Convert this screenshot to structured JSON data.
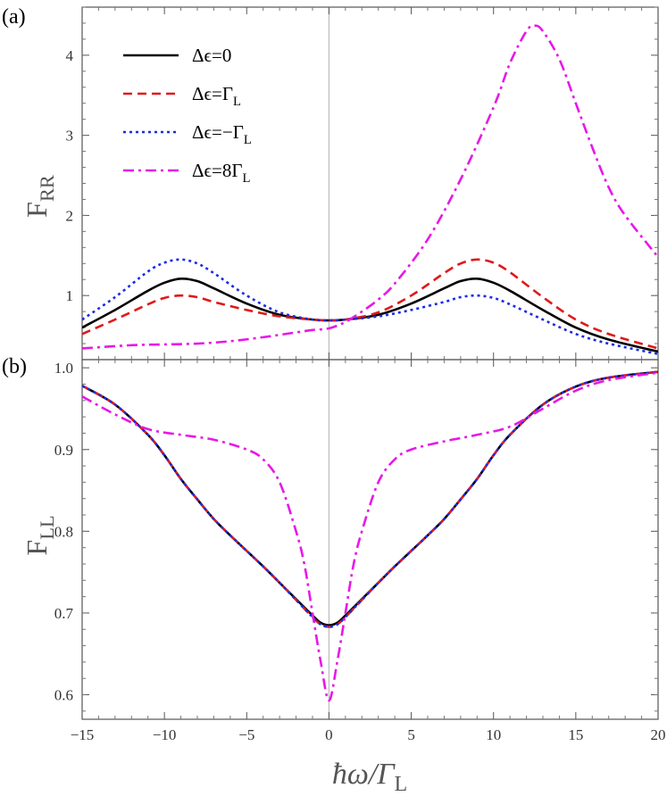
{
  "figure": {
    "x_label": "ħω/Γ",
    "x_label_sub": "L",
    "x_ticks": [
      "−15",
      "−10",
      "−5",
      "0",
      "5",
      "10",
      "15",
      "20"
    ]
  },
  "chart_data": [
    {
      "type": "line",
      "panel_tag": "(a)",
      "ylabel": "F",
      "ylabel_sub": "RR",
      "xlabel": "ħω/ΓL",
      "xlim": [
        -15,
        20
      ],
      "ylim": [
        0.2,
        4.6
      ],
      "y_ticks": [
        1,
        2,
        3,
        4
      ],
      "grid": false,
      "legend": "top-left",
      "series": [
        {
          "name": "Δϵ=0",
          "name_main": "Δϵ=0",
          "name_sub": "",
          "color": "#000000",
          "dash": "solid",
          "x": [
            -15,
            -13,
            -11,
            -10,
            -9,
            -8,
            -7,
            -5,
            -3,
            -1,
            0,
            1,
            3,
            5,
            7,
            8,
            9,
            10,
            11,
            13,
            15,
            17,
            20
          ],
          "y": [
            0.6,
            0.82,
            1.06,
            1.16,
            1.21,
            1.18,
            1.09,
            0.9,
            0.76,
            0.7,
            0.69,
            0.7,
            0.76,
            0.9,
            1.09,
            1.18,
            1.21,
            1.16,
            1.06,
            0.82,
            0.6,
            0.45,
            0.3
          ]
        },
        {
          "name": "Δϵ=ΓL",
          "name_main": "Δϵ=Γ",
          "name_sub": "L",
          "color": "#e0191b",
          "dash": "10,6",
          "x": [
            -15,
            -13,
            -11,
            -10,
            -9,
            -8,
            -7,
            -5,
            -3,
            -1,
            0,
            1,
            3,
            5,
            7,
            8,
            9,
            10,
            11,
            13,
            15,
            17,
            20
          ],
          "y": [
            0.52,
            0.7,
            0.89,
            0.97,
            1.0,
            0.98,
            0.92,
            0.82,
            0.74,
            0.7,
            0.69,
            0.7,
            0.79,
            1.0,
            1.28,
            1.4,
            1.45,
            1.41,
            1.29,
            0.98,
            0.7,
            0.52,
            0.34
          ]
        },
        {
          "name": "Δϵ=−ΓL",
          "name_main": "Δϵ=−Γ",
          "name_sub": "L",
          "color": "#1c2ce0",
          "dash": "3,4",
          "x": [
            -15,
            -13,
            -11,
            -10,
            -9,
            -8,
            -7,
            -5,
            -3,
            -1,
            0,
            1,
            3,
            5,
            7,
            8,
            9,
            10,
            11,
            13,
            15,
            17,
            20
          ],
          "y": [
            0.7,
            0.98,
            1.3,
            1.41,
            1.45,
            1.4,
            1.28,
            1.0,
            0.79,
            0.7,
            0.69,
            0.7,
            0.74,
            0.82,
            0.92,
            0.98,
            1.0,
            0.97,
            0.89,
            0.7,
            0.52,
            0.4,
            0.27
          ]
        },
        {
          "name": "Δϵ=8ΓL",
          "name_main": "Δϵ=8Γ",
          "name_sub": "L",
          "color": "#e619e6",
          "dash": "12,5,3,5",
          "x": [
            -15,
            -12,
            -10,
            -8,
            -6,
            -4,
            -2,
            -1,
            0,
            1,
            2,
            3,
            4,
            6,
            8,
            10,
            11,
            12,
            12.5,
            13,
            14,
            15,
            16,
            17,
            18,
            20
          ],
          "y": [
            0.34,
            0.38,
            0.39,
            0.4,
            0.43,
            0.48,
            0.54,
            0.57,
            0.59,
            0.67,
            0.8,
            0.95,
            1.15,
            1.7,
            2.45,
            3.35,
            3.9,
            4.3,
            4.37,
            4.3,
            3.95,
            3.4,
            2.85,
            2.35,
            2.0,
            1.48
          ]
        }
      ]
    },
    {
      "type": "line",
      "panel_tag": "(b)",
      "ylabel": "F",
      "ylabel_sub": "LL",
      "xlabel": "ħω/ΓL",
      "xlim": [
        -15,
        20
      ],
      "ylim": [
        0.57,
        1.01
      ],
      "y_ticks": [
        0.6,
        0.7,
        0.8,
        0.9,
        1.0
      ],
      "y_tick_labels": [
        "0.6",
        "0.7",
        "0.8",
        "0.9",
        "1.0"
      ],
      "grid": false,
      "series": [
        {
          "name": "Δϵ=0",
          "color": "#000000",
          "dash": "solid",
          "x": [
            -15,
            -13,
            -11,
            -10,
            -9,
            -8,
            -7,
            -6,
            -5,
            -4,
            -3,
            -2,
            -1,
            -0.5,
            0,
            0.5,
            1,
            2,
            3,
            4,
            5,
            6,
            7,
            8,
            9,
            10,
            11,
            13,
            15,
            17,
            20
          ],
          "y": [
            0.978,
            0.955,
            0.918,
            0.893,
            0.864,
            0.839,
            0.815,
            0.795,
            0.776,
            0.757,
            0.737,
            0.717,
            0.697,
            0.688,
            0.685,
            0.688,
            0.697,
            0.717,
            0.737,
            0.757,
            0.776,
            0.795,
            0.815,
            0.839,
            0.864,
            0.893,
            0.918,
            0.955,
            0.977,
            0.988,
            0.995
          ]
        },
        {
          "name": "Δϵ=ΓL",
          "color": "#e0191b",
          "dash": "10,6",
          "x": [
            -15,
            -13,
            -11,
            -10,
            -9,
            -8,
            -7,
            -6,
            -5,
            -4,
            -3,
            -2,
            -1,
            -0.5,
            0,
            0.5,
            1,
            2,
            3,
            4,
            5,
            6,
            7,
            8,
            9,
            10,
            11,
            13,
            15,
            17,
            20
          ],
          "y": [
            0.978,
            0.955,
            0.918,
            0.893,
            0.864,
            0.839,
            0.815,
            0.795,
            0.776,
            0.757,
            0.737,
            0.716,
            0.695,
            0.686,
            0.683,
            0.686,
            0.695,
            0.716,
            0.737,
            0.757,
            0.776,
            0.795,
            0.815,
            0.839,
            0.864,
            0.893,
            0.918,
            0.955,
            0.977,
            0.988,
            0.995
          ]
        },
        {
          "name": "Δϵ=−ΓL",
          "color": "#1c2ce0",
          "dash": "3,4",
          "x": [
            -15,
            -13,
            -11,
            -10,
            -9,
            -8,
            -7,
            -6,
            -5,
            -4,
            -3,
            -2,
            -1,
            -0.5,
            0,
            0.5,
            1,
            2,
            3,
            4,
            5,
            6,
            7,
            8,
            9,
            10,
            11,
            13,
            15,
            17,
            20
          ],
          "y": [
            0.978,
            0.955,
            0.918,
            0.893,
            0.864,
            0.839,
            0.815,
            0.795,
            0.776,
            0.757,
            0.737,
            0.716,
            0.695,
            0.686,
            0.683,
            0.686,
            0.695,
            0.716,
            0.737,
            0.757,
            0.776,
            0.795,
            0.815,
            0.839,
            0.864,
            0.893,
            0.918,
            0.955,
            0.977,
            0.988,
            0.995
          ]
        },
        {
          "name": "Δϵ=8ΓL",
          "color": "#e619e6",
          "dash": "12,5,3,5",
          "x": [
            -15,
            -13,
            -11,
            -9,
            -7,
            -5,
            -4,
            -3,
            -2,
            -1.5,
            -1,
            -0.5,
            0,
            0.5,
            1,
            1.5,
            2,
            3,
            4,
            5,
            7,
            9,
            11,
            13,
            15,
            17,
            20
          ],
          "y": [
            0.965,
            0.943,
            0.925,
            0.918,
            0.912,
            0.9,
            0.888,
            0.86,
            0.8,
            0.76,
            0.7,
            0.64,
            0.593,
            0.64,
            0.7,
            0.76,
            0.8,
            0.86,
            0.888,
            0.9,
            0.91,
            0.918,
            0.928,
            0.95,
            0.972,
            0.985,
            0.994
          ]
        }
      ]
    }
  ]
}
